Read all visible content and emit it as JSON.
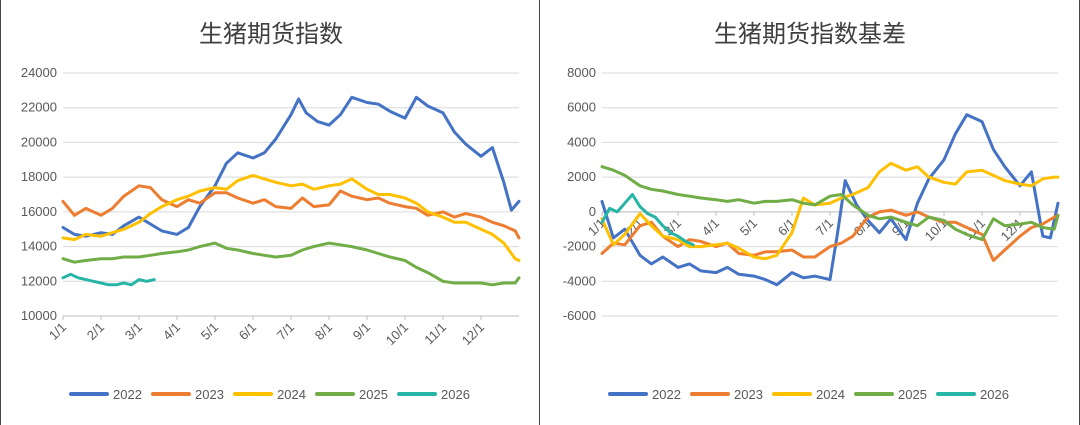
{
  "chart_data": [
    {
      "type": "line",
      "title": "生猪期货指数",
      "ylim": [
        10000,
        24000
      ],
      "yticks": [
        10000,
        12000,
        14000,
        16000,
        18000,
        20000,
        22000,
        24000
      ],
      "ytick_labels": [
        "10000",
        "12000",
        "14000",
        "16000",
        "18000",
        "20000",
        "22000",
        "24000"
      ],
      "xlim": [
        1,
        13
      ],
      "xticks": [
        1,
        2,
        3,
        4,
        5,
        6,
        7,
        8,
        9,
        10,
        11,
        12
      ],
      "xtick_labels": [
        "1/1",
        "2/1",
        "3/1",
        "4/1",
        "5/1",
        "6/1",
        "7/1",
        "8/1",
        "9/1",
        "10/1",
        "11/1",
        "12/1"
      ],
      "grid": true,
      "legend_position": "bottom",
      "series": [
        {
          "name": "2022",
          "color": "#4472C4",
          "x": [
            1,
            1.3,
            1.6,
            2,
            2.3,
            2.6,
            3,
            3.3,
            3.6,
            4,
            4.3,
            4.6,
            5,
            5.3,
            5.6,
            6,
            6.3,
            6.6,
            7,
            7.2,
            7.4,
            7.7,
            8,
            8.3,
            8.6,
            9,
            9.3,
            9.6,
            10,
            10.3,
            10.6,
            11,
            11.3,
            11.6,
            12,
            12.3,
            12.6,
            12.8,
            13
          ],
          "y": [
            15100,
            14700,
            14600,
            14800,
            14700,
            15200,
            15700,
            15300,
            14900,
            14700,
            15100,
            16300,
            17500,
            18800,
            19400,
            19100,
            19400,
            20200,
            21600,
            22500,
            21700,
            21200,
            21000,
            21600,
            22600,
            22300,
            22200,
            21800,
            21400,
            22600,
            22100,
            21700,
            20600,
            19900,
            19200,
            19700,
            17700,
            16100,
            16600
          ]
        },
        {
          "name": "2023",
          "color": "#ED7D31",
          "x": [
            1,
            1.3,
            1.6,
            2,
            2.3,
            2.6,
            3,
            3.3,
            3.6,
            4,
            4.3,
            4.6,
            5,
            5.3,
            5.6,
            6,
            6.3,
            6.6,
            7,
            7.3,
            7.6,
            8,
            8.3,
            8.6,
            9,
            9.3,
            9.6,
            10,
            10.3,
            10.6,
            11,
            11.3,
            11.6,
            12,
            12.3,
            12.6,
            12.9,
            13
          ],
          "y": [
            16600,
            15800,
            16200,
            15800,
            16200,
            16900,
            17500,
            17400,
            16700,
            16300,
            16700,
            16500,
            17100,
            17100,
            16800,
            16500,
            16700,
            16300,
            16200,
            16800,
            16300,
            16400,
            17200,
            16900,
            16700,
            16800,
            16500,
            16300,
            16200,
            15800,
            16000,
            15700,
            15900,
            15700,
            15400,
            15200,
            14900,
            14500
          ]
        },
        {
          "name": "2024",
          "color": "#FFC000",
          "x": [
            1,
            1.3,
            1.6,
            2,
            2.3,
            2.6,
            3,
            3.3,
            3.6,
            4,
            4.3,
            4.6,
            5,
            5.3,
            5.6,
            6,
            6.3,
            6.6,
            7,
            7.3,
            7.6,
            8,
            8.3,
            8.6,
            9,
            9.3,
            9.6,
            10,
            10.3,
            10.6,
            11,
            11.3,
            11.6,
            12,
            12.3,
            12.6,
            12.9,
            13
          ],
          "y": [
            14500,
            14400,
            14700,
            14600,
            14800,
            15000,
            15400,
            15900,
            16300,
            16700,
            16900,
            17200,
            17400,
            17300,
            17800,
            18100,
            17900,
            17700,
            17500,
            17600,
            17300,
            17500,
            17600,
            17900,
            17300,
            17000,
            17000,
            16800,
            16500,
            16000,
            15700,
            15400,
            15400,
            15000,
            14700,
            14200,
            13300,
            13200
          ]
        },
        {
          "name": "2025",
          "color": "#70AD47",
          "x": [
            1,
            1.3,
            1.6,
            2,
            2.3,
            2.6,
            3,
            3.3,
            3.6,
            4,
            4.3,
            4.6,
            5,
            5.3,
            5.6,
            6,
            6.3,
            6.6,
            7,
            7.3,
            7.6,
            8,
            8.3,
            8.6,
            9,
            9.3,
            9.6,
            10,
            10.3,
            10.6,
            11,
            11.3,
            11.6,
            12,
            12.3,
            12.6,
            12.9,
            13
          ],
          "y": [
            13300,
            13100,
            13200,
            13300,
            13300,
            13400,
            13400,
            13500,
            13600,
            13700,
            13800,
            14000,
            14200,
            13900,
            13800,
            13600,
            13500,
            13400,
            13500,
            13800,
            14000,
            14200,
            14100,
            14000,
            13800,
            13600,
            13400,
            13200,
            12800,
            12500,
            12000,
            11900,
            11900,
            11900,
            11800,
            11900,
            11900,
            12200
          ]
        },
        {
          "name": "2026",
          "color": "#26B5A7",
          "x": [
            1,
            1.2,
            1.4,
            1.6,
            1.8,
            2,
            2.2,
            2.4,
            2.6,
            2.8,
            3,
            3.2,
            3.4
          ],
          "y": [
            12200,
            12400,
            12200,
            12100,
            12000,
            11900,
            11800,
            11800,
            11900,
            11800,
            12100,
            12000,
            12100
          ]
        }
      ]
    },
    {
      "type": "line",
      "title": "生猪期货指数基差",
      "ylim": [
        -6000,
        8000
      ],
      "yticks": [
        -6000,
        -4000,
        -2000,
        0,
        2000,
        4000,
        6000,
        8000
      ],
      "ytick_labels": [
        "-6000",
        "-4000",
        "-2000",
        "0",
        "2000",
        "4000",
        "6000",
        "8000"
      ],
      "xlim": [
        1,
        13
      ],
      "xticks": [
        1,
        2,
        3,
        4,
        5,
        6,
        7,
        8,
        9,
        10,
        11,
        12
      ],
      "xtick_labels": [
        "1/1",
        "2/1",
        "3/1",
        "4/1",
        "5/1",
        "6/1",
        "7/1",
        "8/1",
        "9/1",
        "10/1",
        "11/1",
        "12/1"
      ],
      "grid": true,
      "legend_position": "bottom",
      "series": [
        {
          "name": "2022",
          "color": "#4472C4",
          "x": [
            1,
            1.3,
            1.6,
            2,
            2.3,
            2.6,
            3,
            3.3,
            3.6,
            4,
            4.3,
            4.6,
            5,
            5.3,
            5.6,
            6,
            6.3,
            6.6,
            7,
            7.2,
            7.4,
            7.7,
            8,
            8.3,
            8.6,
            9,
            9.3,
            9.6,
            10,
            10.3,
            10.6,
            11,
            11.3,
            11.6,
            12,
            12.3,
            12.6,
            12.8,
            13
          ],
          "y": [
            600,
            -1500,
            -1000,
            -2500,
            -3000,
            -2600,
            -3200,
            -3000,
            -3400,
            -3500,
            -3200,
            -3600,
            -3700,
            -3900,
            -4200,
            -3500,
            -3800,
            -3700,
            -3900,
            -1200,
            1800,
            400,
            -500,
            -1200,
            -400,
            -1600,
            500,
            1900,
            3000,
            4500,
            5600,
            5200,
            3600,
            2600,
            1500,
            2300,
            -1400,
            -1500,
            500
          ]
        },
        {
          "name": "2023",
          "color": "#ED7D31",
          "x": [
            1,
            1.3,
            1.6,
            2,
            2.3,
            2.6,
            3,
            3.3,
            3.6,
            4,
            4.3,
            4.6,
            5,
            5.3,
            5.6,
            6,
            6.3,
            6.6,
            7,
            7.3,
            7.6,
            8,
            8.3,
            8.6,
            9,
            9.3,
            9.6,
            10,
            10.3,
            10.6,
            11,
            11.3,
            11.6,
            12,
            12.3,
            12.6,
            12.9,
            13
          ],
          "y": [
            -2400,
            -1800,
            -1900,
            -800,
            -600,
            -1400,
            -2000,
            -1600,
            -1700,
            -2000,
            -1800,
            -2400,
            -2500,
            -2300,
            -2300,
            -2200,
            -2600,
            -2600,
            -2000,
            -1800,
            -1400,
            -300,
            0,
            100,
            -200,
            0,
            -300,
            -600,
            -600,
            -900,
            -1300,
            -2800,
            -2200,
            -1400,
            -900,
            -700,
            -300,
            -200
          ]
        },
        {
          "name": "2024",
          "color": "#FFC000",
          "x": [
            1,
            1.3,
            1.6,
            2,
            2.3,
            2.6,
            3,
            3.3,
            3.6,
            4,
            4.3,
            4.6,
            5,
            5.3,
            5.6,
            6,
            6.3,
            6.6,
            7,
            7.3,
            7.6,
            8,
            8.3,
            8.6,
            9,
            9.3,
            9.6,
            10,
            10.3,
            10.6,
            11,
            11.3,
            11.6,
            12,
            12.3,
            12.6,
            12.9,
            13
          ],
          "y": [
            -400,
            -1900,
            -1300,
            -100,
            -800,
            -1400,
            -1600,
            -2000,
            -2000,
            -1900,
            -1800,
            -2100,
            -2600,
            -2700,
            -2500,
            -1200,
            800,
            400,
            500,
            800,
            1000,
            1400,
            2300,
            2800,
            2400,
            2600,
            2000,
            1700,
            1600,
            2300,
            2400,
            2100,
            1800,
            1600,
            1500,
            1900,
            2000,
            2000
          ]
        },
        {
          "name": "2025",
          "color": "#70AD47",
          "x": [
            1,
            1.3,
            1.6,
            2,
            2.3,
            2.6,
            3,
            3.3,
            3.6,
            4,
            4.3,
            4.6,
            5,
            5.3,
            5.6,
            6,
            6.3,
            6.6,
            7,
            7.3,
            7.6,
            8,
            8.3,
            8.6,
            9,
            9.3,
            9.6,
            10,
            10.3,
            10.6,
            11,
            11.3,
            11.6,
            12,
            12.3,
            12.6,
            12.9,
            13
          ],
          "y": [
            2600,
            2400,
            2100,
            1500,
            1300,
            1200,
            1000,
            900,
            800,
            700,
            600,
            700,
            500,
            600,
            600,
            700,
            500,
            400,
            900,
            1000,
            400,
            -200,
            -400,
            -300,
            -600,
            -800,
            -300,
            -500,
            -1000,
            -1300,
            -1600,
            -400,
            -800,
            -700,
            -600,
            -900,
            -1000,
            -200
          ]
        },
        {
          "name": "2026",
          "color": "#26B5A7",
          "x": [
            1,
            1.2,
            1.4,
            1.6,
            1.8,
            2,
            2.2,
            2.4,
            2.6,
            2.8,
            3,
            3.2,
            3.4
          ],
          "y": [
            -600,
            200,
            0,
            500,
            1000,
            300,
            -100,
            -300,
            -800,
            -1200,
            -1400,
            -1700,
            -1900
          ]
        }
      ]
    }
  ]
}
